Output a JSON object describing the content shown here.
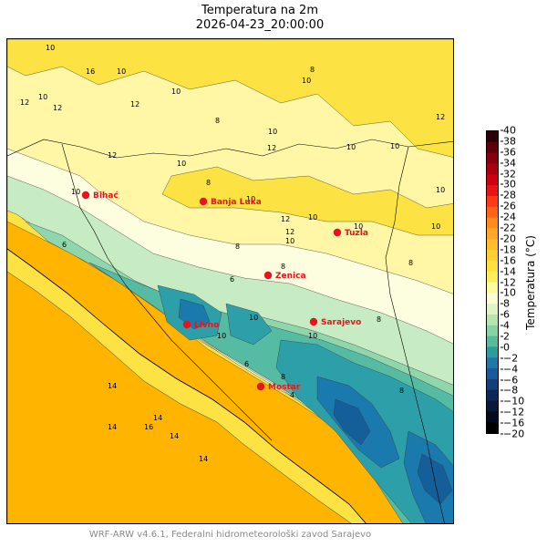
{
  "header": {
    "title": "Temperatura na 2m",
    "datetime": "2026-04-23_20:00:00"
  },
  "colorbar": {
    "label": "Temperatura (°C)",
    "ticks": [
      "40",
      "38",
      "36",
      "34",
      "32",
      "30",
      "28",
      "26",
      "24",
      "22",
      "20",
      "18",
      "16",
      "14",
      "12",
      "10",
      "8",
      "6",
      "4",
      "2",
      "0",
      "−2",
      "−4",
      "−6",
      "−8",
      "−10",
      "−12",
      "−16",
      "−20"
    ],
    "colors": [
      "#2a0005",
      "#5c0009",
      "#87000b",
      "#ab000f",
      "#cf0010",
      "#eb1414",
      "#ff3b14",
      "#ff6414",
      "#ff8a1e",
      "#ffa728",
      "#ffbd2a",
      "#ffcf32",
      "#ffe23c",
      "#fff05a",
      "#fffaa0",
      "#fdfbd4",
      "#dff3c3",
      "#b6e6b0",
      "#86d3a3",
      "#57bb9c",
      "#2f9c9c",
      "#2178a6",
      "#1a5a99",
      "#143f78",
      "#0c2955",
      "#081838",
      "#040b1f",
      "#000000"
    ]
  },
  "map": {
    "level_colors": {
      "t14": "#ffb400",
      "t12": "#fce243",
      "t10": "#fff7a6",
      "t8": "#fdfde0",
      "t6": "#c7ebc2",
      "t4": "#8fd6ad",
      "t2": "#55bca3",
      "t0": "#2d9fa8",
      "tm2": "#1a79ad",
      "tm4": "#145f99"
    },
    "cities": [
      {
        "name": "Bihać"
      },
      {
        "name": "Banja Luka"
      },
      {
        "name": "Tuzla"
      },
      {
        "name": "Zenica"
      },
      {
        "name": "Livno"
      },
      {
        "name": "Sarajevo"
      },
      {
        "name": "Mostar"
      }
    ],
    "city_color": "#e8141c",
    "contour_labels": [
      "10",
      "16",
      "10",
      "12",
      "12",
      "10",
      "10",
      "8",
      "10",
      "12",
      "10",
      "8",
      "8",
      "10",
      "10",
      "12",
      "10",
      "12",
      "12",
      "10",
      "10",
      "10",
      "8",
      "10",
      "10",
      "8",
      "6",
      "10",
      "6",
      "8",
      "14",
      "14",
      "14",
      "14",
      "14",
      "16",
      "8",
      "8",
      "10",
      "6",
      "12",
      "10",
      "10",
      "10",
      "8",
      "12",
      "4"
    ]
  },
  "footer": {
    "credit": "WRF-ARW v4.6.1, Federalni hidrometeorološki zavod Sarajevo"
  }
}
